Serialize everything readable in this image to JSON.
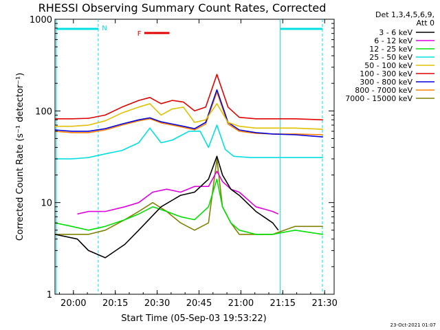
{
  "chart_data": {
    "type": "line",
    "title": "RHESSI Observing Summary Count Rates, Corrected",
    "xlabel": "Start Time (05-Sep-03 19:53:22)",
    "ylabel": "Corrected Count Rate (s⁻¹ detector⁻¹)",
    "yscale": "log",
    "ylim": [
      1,
      1000
    ],
    "xlim": [
      0,
      100
    ],
    "x_ticks": [
      {
        "label": "20:00",
        "x": 6.6
      },
      {
        "label": "20:15",
        "x": 21.6
      },
      {
        "label": "20:30",
        "x": 36.6
      },
      {
        "label": "20:45",
        "x": 51.6
      },
      {
        "label": "21:00",
        "x": 66.6
      },
      {
        "label": "21:15",
        "x": 81.6
      },
      {
        "label": "21:30",
        "x": 96.6
      }
    ],
    "y_ticks": [
      {
        "label": "1",
        "v": 1
      },
      {
        "label": "10",
        "v": 10
      },
      {
        "label": "100",
        "v": 100
      },
      {
        "label": "1000",
        "v": 1000
      }
    ],
    "detector_info": [
      "Det 1,3,4,5,6,9,",
      "Att 0"
    ],
    "annotations": {
      "night_label": "N",
      "flare_label": "F",
      "timestamp": "23-Oct-2021 01:07"
    },
    "series": [
      {
        "name": "3 - 6 keV",
        "color": "#000000",
        "x": [
          0,
          8,
          12,
          18,
          25,
          30,
          38,
          45,
          50,
          55,
          58,
          60,
          63,
          66,
          72,
          78,
          80
        ],
        "values": [
          4.5,
          4,
          3,
          2.5,
          3.5,
          5,
          9,
          12,
          13,
          18,
          32,
          20,
          14,
          12,
          8,
          6,
          5
        ]
      },
      {
        "name": "6 - 12 keV",
        "color": "#e000e0",
        "x": [
          8,
          12,
          18,
          25,
          30,
          35,
          40,
          45,
          50,
          55,
          58,
          60,
          63,
          66,
          72,
          78,
          80
        ],
        "values": [
          7.5,
          8,
          8,
          9,
          10,
          13,
          14,
          13,
          15,
          15,
          22,
          17,
          14,
          13,
          9,
          8,
          7.5
        ]
      },
      {
        "name": "12 - 25 keV",
        "color": "#00e000",
        "x": [
          0,
          6,
          12,
          18,
          25,
          30,
          35,
          40,
          45,
          50,
          55,
          58,
          60,
          63,
          66,
          72,
          78,
          86,
          96
        ],
        "values": [
          6,
          5.5,
          5,
          5.5,
          6.5,
          7.5,
          9,
          8,
          7,
          6.5,
          9,
          18,
          9,
          6,
          5,
          4.5,
          4.5,
          5,
          4.5
        ]
      },
      {
        "name": "25 - 50 keV",
        "color": "#00e0e0",
        "x": [
          0,
          6,
          12,
          18,
          24,
          30,
          34,
          38,
          42,
          48,
          52,
          55,
          58,
          61,
          64,
          70,
          78,
          86,
          96
        ],
        "values": [
          30,
          30,
          31,
          34,
          37,
          45,
          65,
          45,
          48,
          60,
          60,
          40,
          70,
          38,
          32,
          31,
          31,
          31,
          31
        ]
      },
      {
        "name": "50 - 100 keV",
        "color": "#e0c000",
        "x": [
          0,
          6,
          12,
          18,
          24,
          30,
          34,
          38,
          42,
          46,
          50,
          54,
          58,
          62,
          66,
          72,
          78,
          86,
          96
        ],
        "values": [
          68,
          68,
          70,
          78,
          95,
          110,
          120,
          90,
          105,
          110,
          75,
          80,
          120,
          75,
          68,
          65,
          65,
          65,
          63
        ]
      },
      {
        "name": "100 - 300 keV",
        "color": "#e00000",
        "x": [
          0,
          6,
          12,
          18,
          24,
          30,
          34,
          38,
          42,
          46,
          50,
          54,
          58,
          62,
          66,
          72,
          78,
          86,
          96
        ],
        "values": [
          82,
          82,
          83,
          90,
          110,
          130,
          140,
          120,
          130,
          125,
          100,
          110,
          250,
          110,
          85,
          82,
          82,
          82,
          80
        ]
      },
      {
        "name": "300 - 800 keV",
        "color": "#0000e0",
        "x": [
          0,
          6,
          12,
          18,
          24,
          30,
          34,
          38,
          42,
          46,
          50,
          54,
          58,
          62,
          66,
          72,
          78,
          86,
          96
        ],
        "values": [
          62,
          60,
          60,
          64,
          72,
          80,
          84,
          76,
          72,
          68,
          64,
          75,
          170,
          75,
          62,
          58,
          56,
          55,
          52
        ]
      },
      {
        "name": "800 - 7000 keV",
        "color": "#ff8000",
        "x": [
          0,
          6,
          12,
          18,
          24,
          30,
          34,
          38,
          42,
          46,
          50,
          54,
          58,
          62,
          66,
          72,
          78,
          86,
          96
        ],
        "values": [
          60,
          58,
          58,
          62,
          70,
          78,
          82,
          74,
          70,
          66,
          62,
          72,
          160,
          72,
          60,
          57,
          56,
          56,
          55
        ]
      },
      {
        "name": "7000 - 15000 keV",
        "color": "#808000",
        "x": [
          0,
          6,
          12,
          18,
          25,
          30,
          35,
          40,
          45,
          50,
          55,
          58,
          60,
          63,
          66,
          72,
          78,
          86,
          96
        ],
        "values": [
          4.5,
          4.5,
          4.5,
          5,
          6.5,
          8,
          10,
          8,
          6,
          5,
          6,
          30,
          9,
          6,
          4.5,
          4.5,
          4.5,
          5.5,
          5.5
        ]
      }
    ]
  }
}
